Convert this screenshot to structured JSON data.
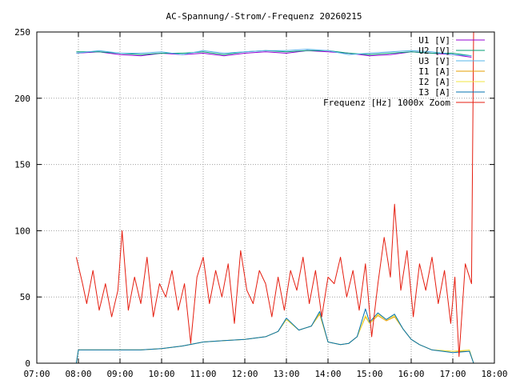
{
  "chart_data": {
    "type": "line",
    "title": "AC-Spannung/-Strom/-Frequenz 20260215",
    "xlabel": "",
    "ylabel": "",
    "x_unit": "hours",
    "xlim": [
      7,
      18
    ],
    "ylim": [
      0,
      250
    ],
    "x_ticks": [
      7,
      8,
      9,
      10,
      11,
      12,
      13,
      14,
      15,
      16,
      17,
      18
    ],
    "x_tick_labels": [
      "07:00",
      "08:00",
      "09:00",
      "10:00",
      "11:00",
      "12:00",
      "13:00",
      "14:00",
      "15:00",
      "16:00",
      "17:00",
      "18:00"
    ],
    "y_ticks": [
      0,
      50,
      100,
      150,
      200,
      250
    ],
    "y_tick_labels": [
      "0",
      "50",
      "100",
      "150",
      "200",
      "250"
    ],
    "grid": true,
    "legend_position": "top-right",
    "series": [
      {
        "name": "U1 [V]",
        "color": "#9400d3",
        "x": [
          7.95,
          8.5,
          9.0,
          9.5,
          10.0,
          10.5,
          11.0,
          11.5,
          12.0,
          12.5,
          13.0,
          13.5,
          14.0,
          14.5,
          15.0,
          15.5,
          16.0,
          16.5,
          17.0,
          17.45
        ],
        "y": [
          234,
          235,
          233,
          232,
          234,
          233,
          234,
          232,
          234,
          235,
          234,
          236,
          235,
          234,
          232,
          233,
          235,
          234,
          233,
          231
        ]
      },
      {
        "name": "U2 [V]",
        "color": "#009e73",
        "x": [
          7.95,
          8.5,
          9.0,
          9.5,
          10.0,
          10.5,
          11.0,
          11.5,
          12.0,
          12.5,
          13.0,
          13.5,
          14.0,
          14.5,
          15.0,
          15.5,
          16.0,
          16.5,
          17.0,
          17.45
        ],
        "y": [
          235,
          235,
          234,
          233,
          234,
          234,
          235,
          233,
          235,
          236,
          235,
          236,
          236,
          234,
          233,
          234,
          235,
          234,
          234,
          232
        ]
      },
      {
        "name": "U3 [V]",
        "color": "#56b4e9",
        "x": [
          7.95,
          8.5,
          9.0,
          9.5,
          10.0,
          10.5,
          11.0,
          11.5,
          12.0,
          12.5,
          13.0,
          13.5,
          14.0,
          14.5,
          15.0,
          15.5,
          16.0,
          16.5,
          17.0,
          17.45
        ],
        "y": [
          234,
          236,
          234,
          234,
          235,
          233,
          236,
          234,
          235,
          236,
          236,
          237,
          236,
          233,
          234,
          235,
          236,
          235,
          233,
          232
        ]
      },
      {
        "name": "I1 [A]",
        "color": "#e69f00",
        "x": [
          7.85,
          7.95,
          8.0,
          8.5,
          9.0,
          9.5,
          10.0,
          10.5,
          11.0,
          11.5,
          12.0,
          12.5,
          12.8,
          13.0,
          13.3,
          13.6,
          13.8,
          14.0,
          14.3,
          14.5,
          14.7,
          14.9,
          15.0,
          15.2,
          15.4,
          15.6,
          15.8,
          16.0,
          16.2,
          16.5,
          17.0,
          17.4,
          17.5
        ],
        "y": [
          0,
          0,
          10,
          10,
          10,
          10,
          11,
          13,
          16,
          17,
          18,
          20,
          24,
          33,
          25,
          28,
          37,
          16,
          14,
          15,
          20,
          35,
          30,
          36,
          32,
          35,
          26,
          18,
          14,
          10,
          9,
          9,
          0
        ]
      },
      {
        "name": "I2 [A]",
        "color": "#f0e442",
        "x": [
          7.85,
          7.95,
          8.0,
          8.5,
          9.0,
          9.5,
          10.0,
          10.5,
          11.0,
          11.5,
          12.0,
          12.5,
          12.8,
          13.0,
          13.3,
          13.6,
          13.8,
          14.0,
          14.3,
          14.5,
          14.7,
          14.9,
          15.0,
          15.2,
          15.4,
          15.6,
          15.8,
          16.0,
          16.2,
          16.5,
          17.0,
          17.4,
          17.5
        ],
        "y": [
          0,
          0,
          10,
          10,
          10,
          10,
          11,
          13,
          16,
          17,
          18,
          20,
          24,
          33,
          25,
          28,
          38,
          16,
          14,
          15,
          20,
          36,
          30,
          37,
          33,
          36,
          26,
          18,
          14,
          10,
          9,
          10,
          0
        ]
      },
      {
        "name": "I3 [A]",
        "color": "#0072b2",
        "x": [
          7.85,
          7.95,
          8.0,
          8.5,
          9.0,
          9.5,
          10.0,
          10.5,
          11.0,
          11.5,
          12.0,
          12.5,
          12.8,
          13.0,
          13.3,
          13.6,
          13.8,
          14.0,
          14.3,
          14.5,
          14.7,
          14.9,
          15.0,
          15.2,
          15.4,
          15.6,
          15.8,
          16.0,
          16.2,
          16.5,
          17.0,
          17.4,
          17.5
        ],
        "y": [
          0,
          0,
          10,
          10,
          10,
          10,
          11,
          13,
          16,
          17,
          18,
          20,
          24,
          34,
          25,
          28,
          39,
          16,
          14,
          15,
          20,
          41,
          31,
          38,
          33,
          37,
          26,
          18,
          14,
          10,
          8,
          9,
          0
        ]
      },
      {
        "name": "Frequenz [Hz] 1000x Zoom",
        "color": "#e51e10",
        "x": [
          7.95,
          8.1,
          8.2,
          8.35,
          8.5,
          8.65,
          8.8,
          8.95,
          9.05,
          9.2,
          9.35,
          9.5,
          9.65,
          9.8,
          9.95,
          10.1,
          10.25,
          10.4,
          10.55,
          10.7,
          10.85,
          11.0,
          11.15,
          11.3,
          11.45,
          11.6,
          11.75,
          11.9,
          12.05,
          12.2,
          12.35,
          12.5,
          12.65,
          12.8,
          12.95,
          13.1,
          13.25,
          13.4,
          13.55,
          13.7,
          13.85,
          14.0,
          14.15,
          14.3,
          14.45,
          14.6,
          14.75,
          14.9,
          15.05,
          15.2,
          15.35,
          15.5,
          15.6,
          15.75,
          15.9,
          16.05,
          16.2,
          16.35,
          16.5,
          16.65,
          16.8,
          16.95,
          17.05,
          17.15,
          17.3,
          17.45,
          17.5
        ],
        "y": [
          80,
          60,
          45,
          70,
          40,
          60,
          35,
          55,
          100,
          40,
          65,
          45,
          80,
          35,
          60,
          50,
          70,
          40,
          60,
          15,
          65,
          80,
          45,
          70,
          50,
          75,
          30,
          85,
          55,
          45,
          70,
          60,
          35,
          65,
          40,
          70,
          55,
          80,
          45,
          70,
          35,
          65,
          60,
          80,
          50,
          70,
          40,
          75,
          20,
          60,
          95,
          65,
          120,
          55,
          85,
          35,
          75,
          55,
          80,
          45,
          70,
          30,
          65,
          5,
          75,
          60,
          250
        ]
      }
    ]
  }
}
